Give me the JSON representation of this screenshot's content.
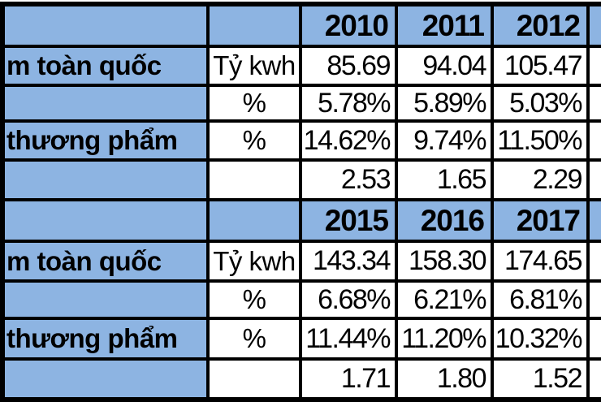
{
  "colors": {
    "header_fill": "#8DB4E2",
    "grid_line": "#000000",
    "cell_bg": "#FFFFFF",
    "text": "#000000"
  },
  "table": {
    "sections": [
      {
        "years": [
          "2010",
          "2011",
          "2012"
        ],
        "rows": [
          {
            "label": "m toàn quốc",
            "unit": "Tỷ kwh",
            "values": [
              "85.69",
              "94.04",
              "105.47"
            ]
          },
          {
            "label": "",
            "unit": "%",
            "values": [
              "5.78%",
              "5.89%",
              "5.03%"
            ]
          },
          {
            "label": "thương phẩm",
            "unit": "%",
            "values": [
              "14.62%",
              "9.74%",
              "11.50%"
            ]
          },
          {
            "label": "",
            "unit": "",
            "values": [
              "2.53",
              "1.65",
              "2.29"
            ]
          }
        ]
      },
      {
        "years": [
          "2015",
          "2016",
          "2017"
        ],
        "rows": [
          {
            "label": "m toàn quốc",
            "unit": "Tỷ kwh",
            "values": [
              "143.34",
              "158.30",
              "174.65"
            ]
          },
          {
            "label": "",
            "unit": "%",
            "values": [
              "6.68%",
              "6.21%",
              "6.81%"
            ]
          },
          {
            "label": "thương phẩm",
            "unit": "%",
            "values": [
              "11.44%",
              "11.20%",
              "10.32%"
            ]
          },
          {
            "label": "",
            "unit": "",
            "values": [
              "1.71",
              "1.80",
              "1.52"
            ]
          }
        ]
      }
    ]
  }
}
